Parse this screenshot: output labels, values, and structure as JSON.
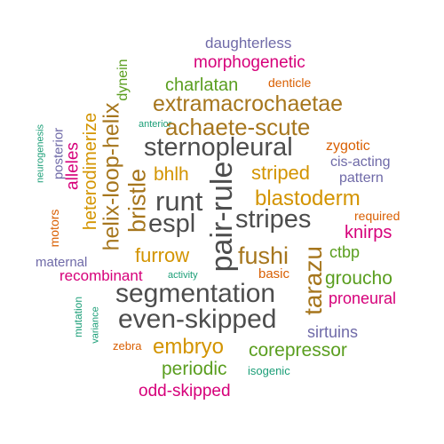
{
  "palette": {
    "gray": "#4d4d4d",
    "brown": "#a6761d",
    "gold": "#d39400",
    "green": "#5a9e1f",
    "purple": "#6f6aa8",
    "magenta": "#d6007a",
    "orange": "#d95f02",
    "teal": "#1b9e77"
  },
  "words": [
    {
      "text": "daughterless",
      "color": "purple"
    },
    {
      "text": "morphogenetic",
      "color": "magenta"
    },
    {
      "text": "dynein",
      "color": "green"
    },
    {
      "text": "charlatan",
      "color": "green"
    },
    {
      "text": "denticle",
      "color": "orange"
    },
    {
      "text": "extramacrochaetae",
      "color": "brown"
    },
    {
      "text": "heterodimerize",
      "color": "gold"
    },
    {
      "text": "helix-loop-helix",
      "color": "brown"
    },
    {
      "text": "anterior",
      "color": "teal"
    },
    {
      "text": "achaete-scute",
      "color": "brown"
    },
    {
      "text": "neurogenesis",
      "color": "teal"
    },
    {
      "text": "posterior",
      "color": "purple"
    },
    {
      "text": "alleles",
      "color": "magenta"
    },
    {
      "text": "sternopleural",
      "color": "gray"
    },
    {
      "text": "zygotic",
      "color": "orange"
    },
    {
      "text": "cis-acting",
      "color": "purple"
    },
    {
      "text": "bhlh",
      "color": "gold"
    },
    {
      "text": "bristle",
      "color": "brown"
    },
    {
      "text": "pair-rule",
      "color": "gray"
    },
    {
      "text": "striped",
      "color": "gold"
    },
    {
      "text": "pattern",
      "color": "purple"
    },
    {
      "text": "runt",
      "color": "gray"
    },
    {
      "text": "blastoderm",
      "color": "gold"
    },
    {
      "text": "espl",
      "color": "gray"
    },
    {
      "text": "stripes",
      "color": "gray"
    },
    {
      "text": "required",
      "color": "orange"
    },
    {
      "text": "motors",
      "color": "orange"
    },
    {
      "text": "knirps",
      "color": "magenta"
    },
    {
      "text": "furrow",
      "color": "gold"
    },
    {
      "text": "fushi",
      "color": "brown"
    },
    {
      "text": "ctbp",
      "color": "green"
    },
    {
      "text": "maternal",
      "color": "purple"
    },
    {
      "text": "tarazu",
      "color": "brown"
    },
    {
      "text": "recombinant",
      "color": "magenta"
    },
    {
      "text": "activity",
      "color": "teal"
    },
    {
      "text": "basic",
      "color": "orange"
    },
    {
      "text": "groucho",
      "color": "green"
    },
    {
      "text": "segmentation",
      "color": "gray"
    },
    {
      "text": "proneural",
      "color": "magenta"
    },
    {
      "text": "mutation",
      "color": "teal"
    },
    {
      "text": "even-skipped",
      "color": "gray"
    },
    {
      "text": "variance",
      "color": "teal"
    },
    {
      "text": "sirtuins",
      "color": "purple"
    },
    {
      "text": "zebra",
      "color": "orange"
    },
    {
      "text": "embryo",
      "color": "gold"
    },
    {
      "text": "corepressor",
      "color": "green"
    },
    {
      "text": "periodic",
      "color": "green"
    },
    {
      "text": "isogenic",
      "color": "teal"
    },
    {
      "text": "odd-skipped",
      "color": "magenta"
    }
  ]
}
